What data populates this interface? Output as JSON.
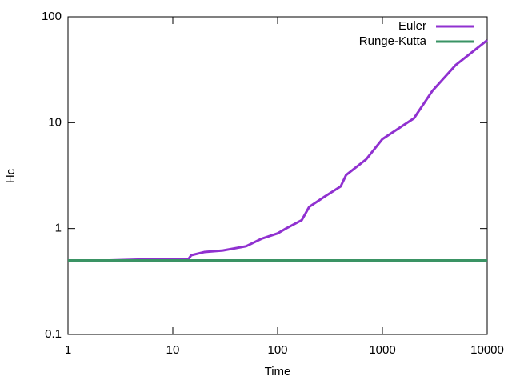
{
  "chart_data": {
    "type": "line",
    "x_label": "Time",
    "y_label": "Hc",
    "xscale": "log",
    "yscale": "log",
    "xlim": [
      1,
      10000
    ],
    "ylim": [
      0.1,
      100
    ],
    "xticks": [
      1,
      10,
      100,
      1000,
      10000
    ],
    "yticks": [
      0.1,
      1,
      10,
      100
    ],
    "legend": "upper right",
    "series": [
      {
        "name": "Euler",
        "color": "#9031d0",
        "x": [
          2.5,
          5,
          14,
          15,
          20,
          30,
          50,
          70,
          100,
          120,
          170,
          200,
          280,
          400,
          450,
          700,
          1000,
          2000,
          3000,
          5000,
          10000
        ],
        "values": [
          0.5,
          0.51,
          0.51,
          0.56,
          0.6,
          0.62,
          0.68,
          0.8,
          0.9,
          1.0,
          1.2,
          1.6,
          2.0,
          2.5,
          3.2,
          4.5,
          7,
          11,
          20,
          35,
          60
        ]
      },
      {
        "name": "Runge-Kutta",
        "color": "#3a9364",
        "x": [
          1,
          10000
        ],
        "values": [
          0.5,
          0.5
        ]
      }
    ]
  }
}
